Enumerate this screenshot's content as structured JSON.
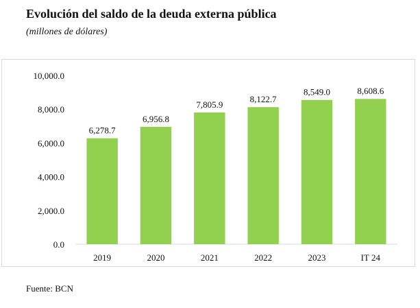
{
  "header": {
    "title": "Evolución del saldo de la deuda externa pública",
    "subtitle": "(millones de dólares)"
  },
  "footer": {
    "source": "Fuente: BCN"
  },
  "colors": {
    "bar": "#92d050",
    "axis": "#d9d9d9"
  },
  "chart_data": {
    "type": "bar",
    "title": "",
    "xlabel": "",
    "ylabel": "",
    "categories": [
      "2019",
      "2020",
      "2021",
      "2022",
      "2023",
      "IT 24"
    ],
    "values": [
      6278.7,
      6956.8,
      7805.9,
      8122.7,
      8549.0,
      8608.6
    ],
    "value_labels": [
      "6,278.7",
      "6,956.8",
      "7,805.9",
      "8,122.7",
      "8,549.0",
      "8,608.6"
    ],
    "ylim": [
      0,
      10000
    ],
    "yticks": [
      0,
      2000,
      4000,
      6000,
      8000,
      10000
    ],
    "ytick_labels": [
      "0.0",
      "2,000.0",
      "4,000.0",
      "6,000.0",
      "8,000.0",
      "10,000.0"
    ],
    "grid": false,
    "legend": "none"
  }
}
